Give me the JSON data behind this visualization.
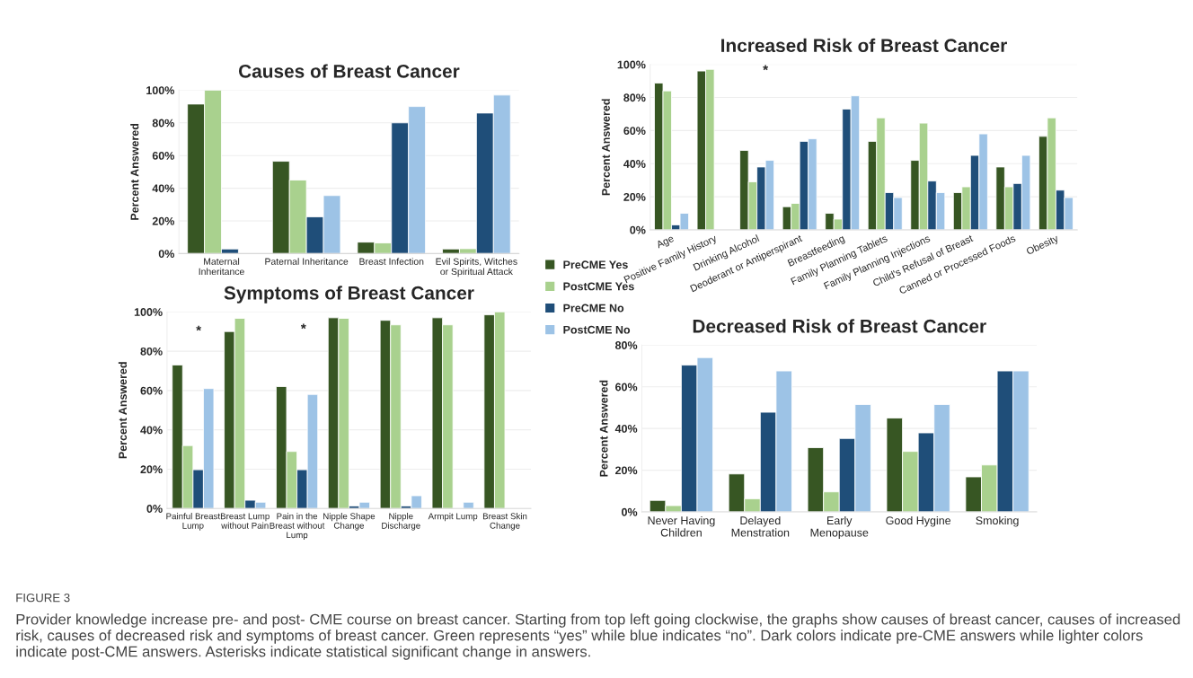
{
  "chart_data": [
    {
      "type": "bar",
      "title": "Causes of Breast Cancer",
      "ylabel": "Percent Answered",
      "categories": [
        "Maternal\nInheritance",
        "Paternal Inheritance",
        "Breast Infection",
        "Evil Spirits, Witches\nor Spiritual Attack"
      ],
      "series": [
        {
          "name": "PreCME Yes",
          "color": "#375623",
          "values": [
            91.5,
            56.5,
            7,
            2.8
          ]
        },
        {
          "name": "PostCME Yes",
          "color": "#a9d18e",
          "values": [
            100,
            45,
            6.5,
            3
          ]
        },
        {
          "name": "PreCME No",
          "color": "#1f4e79",
          "values": [
            2.8,
            22.5,
            80,
            86
          ]
        },
        {
          "name": "PostCME No",
          "color": "#9dc3e6",
          "values": [
            null,
            35.5,
            90,
            97
          ]
        }
      ],
      "ylim": [
        0,
        100
      ],
      "yticks": [
        {
          "value": 0,
          "label": "0%"
        },
        {
          "value": 20,
          "label": "20%"
        },
        {
          "value": 40,
          "label": "40%"
        },
        {
          "value": 60,
          "label": "60%"
        },
        {
          "value": 80,
          "label": "80%"
        },
        {
          "value": 100,
          "label": "100%"
        }
      ],
      "grid": "y",
      "legend": "right",
      "annotations": [
        "FIGURE 3",
        "Provider knowledge increase pre- and post- CME course on breast cancer. Starting from top left going clockwise, the graphs show causes of breast cancer, causes of increased risk, causes of decreased risk and symptoms of breast cancer. Green represents “yes” while blue indicates “no”. Dark colors indicate pre-CME answers while lighter colors indicate post-CME answers. Asterisks indicate statistical significant change in answers."
      ]
    },
    {
      "type": "bar",
      "title": "Increased Risk of Breast Cancer",
      "ylabel": "Percent Answered",
      "categories": [
        "Age",
        "Positive Family History",
        "Drinking Alcohol",
        "Deoderant or Antiperspirant",
        "Breastfeeding",
        "Family Planning Tablets",
        "Family Planning Injections",
        "Child's Refusal of Breast",
        "Canned or Processed Foods",
        "Obesity"
      ],
      "series": [
        {
          "color": "#375623",
          "values": [
            88.7,
            96,
            48,
            14,
            10,
            53.5,
            42,
            22.5,
            38,
            56.5
          ]
        },
        {
          "color": "#a9d18e",
          "values": [
            84,
            97,
            29,
            16,
            6.5,
            67.7,
            64.5,
            26,
            26,
            67.7
          ]
        },
        {
          "color": "#1f4e79",
          "values": [
            3,
            null,
            38,
            53.5,
            73,
            22.5,
            29.5,
            45,
            28,
            24
          ]
        },
        {
          "color": "#9dc3e6",
          "values": [
            10,
            null,
            42,
            55,
            81,
            19.5,
            22.5,
            58,
            45,
            19.5
          ]
        }
      ],
      "ylim": [
        0,
        100
      ],
      "yticks": [
        {
          "value": 0,
          "label": "0%"
        },
        {
          "value": 20,
          "label": "20%"
        },
        {
          "value": 40,
          "label": "40%"
        },
        {
          "value": 60,
          "label": "60%"
        },
        {
          "value": 80,
          "label": "80%"
        },
        {
          "value": 100,
          "label": "100%"
        }
      ],
      "grid": "y",
      "annotations": [
        "*"
      ]
    },
    {
      "type": "bar",
      "title": "Symptoms of Breast Cancer",
      "ylabel": "Percent Answered",
      "categories": [
        "Painful Breast\nLump",
        "Breast Lump\nwithout Pain",
        "Pain in the\nBreast without\nLump",
        "Nipple Shape\nChange",
        "Nipple\nDischarge",
        "Armpit Lump",
        "Breast Skin\nChange"
      ],
      "series": [
        {
          "color": "#375623",
          "values": [
            73,
            90,
            62,
            97,
            95.7,
            97,
            98.5
          ]
        },
        {
          "color": "#a9d18e",
          "values": [
            32,
            96.7,
            29,
            96.7,
            93.4,
            93.4,
            100
          ]
        },
        {
          "color": "#1f4e79",
          "values": [
            19.7,
            4.2,
            19.7,
            1.3,
            1.3,
            null,
            null
          ]
        },
        {
          "color": "#9dc3e6",
          "values": [
            61,
            3.2,
            58,
            3.2,
            6.5,
            3.2,
            null
          ]
        }
      ],
      "ylim": [
        0,
        100
      ],
      "yticks": [
        {
          "value": 0,
          "label": "0%"
        },
        {
          "value": 20,
          "label": "20%"
        },
        {
          "value": 40,
          "label": "40%"
        },
        {
          "value": 60,
          "label": "60%"
        },
        {
          "value": 80,
          "label": "80%"
        },
        {
          "value": 100,
          "label": "100%"
        }
      ],
      "grid": "y",
      "annotations": [
        "*",
        "*"
      ]
    },
    {
      "type": "bar",
      "title": "Decreased Risk of Breast Cancer",
      "ylabel": "Percent Answered",
      "categories": [
        "Never Having\nChildren",
        "Delayed\nMenstration",
        "Early\nMenopause",
        "Good Hygine",
        "Smoking"
      ],
      "series": [
        {
          "color": "#375623",
          "values": [
            5.5,
            18.2,
            30.8,
            45,
            16.8
          ]
        },
        {
          "color": "#a9d18e",
          "values": [
            3,
            6.3,
            9.6,
            29,
            22.5
          ]
        },
        {
          "color": "#1f4e79",
          "values": [
            70.4,
            47.8,
            35.2,
            37.9,
            67.6
          ]
        },
        {
          "color": "#9dc3e6",
          "values": [
            74,
            67.6,
            51.5,
            51.5,
            67.6
          ]
        }
      ],
      "ylim": [
        0,
        80
      ],
      "yticks": [
        {
          "value": 0,
          "label": "0%"
        },
        {
          "value": 20,
          "label": "20%"
        },
        {
          "value": 40,
          "label": "40%"
        },
        {
          "value": 60,
          "label": "60%"
        },
        {
          "value": 80,
          "label": "80%"
        }
      ],
      "grid": "y"
    }
  ]
}
